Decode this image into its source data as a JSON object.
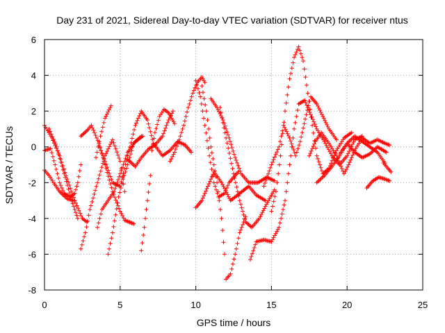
{
  "chart_data": {
    "type": "scatter",
    "title": "Day 231 of 2021, Sidereal Day-to-day VTEC variation (SDTVAR) for receiver ntus",
    "xlabel": "GPS time / hours",
    "ylabel": "SDTVAR / TECUs",
    "xlim": [
      0,
      25
    ],
    "ylim": [
      -8,
      6
    ],
    "xticks": [
      "0",
      "5",
      "10",
      "15",
      "20",
      "25"
    ],
    "yticks": [
      "-8",
      "-6",
      "-4",
      "-2",
      "0",
      "2",
      "4",
      "6"
    ],
    "grid": true,
    "marker": "plus",
    "color": "#ff0000",
    "series": [
      {
        "points": [
          [
            0.0,
            1.2
          ],
          [
            0.5,
            0.5
          ],
          [
            1.0,
            -0.5
          ],
          [
            1.5,
            -1.8
          ],
          [
            2.0,
            -3.0
          ],
          [
            2.5,
            -4.0
          ],
          [
            2.8,
            -4.2
          ]
        ]
      },
      {
        "points": [
          [
            0.0,
            -0.2
          ],
          [
            0.4,
            -0.1
          ],
          [
            0.7,
            -1.0
          ],
          [
            1.0,
            -2.0
          ],
          [
            1.3,
            -2.6
          ],
          [
            1.7,
            -2.8
          ],
          [
            2.0,
            -2.6
          ],
          [
            2.2,
            -2.0
          ],
          [
            2.4,
            -1.0
          ]
        ]
      },
      {
        "points": [
          [
            0.0,
            -1.3
          ],
          [
            0.3,
            -1.6
          ],
          [
            0.6,
            -2.0
          ],
          [
            1.0,
            -2.5
          ],
          [
            1.5,
            -2.9
          ],
          [
            2.0,
            -3.0
          ]
        ]
      },
      {
        "points": [
          [
            0.3,
            1.0
          ],
          [
            0.8,
            0.0
          ],
          [
            1.3,
            -1.5
          ],
          [
            1.8,
            -3.0
          ],
          [
            2.2,
            -4.0
          ]
        ]
      },
      {
        "points": [
          [
            2.4,
            -5.7
          ],
          [
            2.7,
            -4.8
          ],
          [
            3.0,
            -3.5
          ],
          [
            3.5,
            -2.0
          ],
          [
            4.0,
            -0.5
          ],
          [
            4.5,
            0.4
          ],
          [
            5.0,
            -0.8
          ],
          [
            5.3,
            -2.5
          ]
        ]
      },
      {
        "points": [
          [
            2.4,
            0.6
          ],
          [
            2.8,
            0.9
          ],
          [
            3.1,
            1.2
          ],
          [
            3.3,
            0.8
          ],
          [
            3.6,
            0.2
          ],
          [
            4.0,
            -1.0
          ],
          [
            4.5,
            -2.5
          ],
          [
            5.0,
            -3.6
          ],
          [
            5.3,
            -4.1
          ],
          [
            5.9,
            -4.3
          ]
        ]
      },
      {
        "points": [
          [
            3.4,
            -0.6
          ],
          [
            3.7,
            0.6
          ],
          [
            4.0,
            1.6
          ],
          [
            4.4,
            2.3
          ]
        ]
      },
      {
        "points": [
          [
            3.6,
            0.1
          ],
          [
            4.0,
            -0.8
          ],
          [
            4.5,
            -2.0
          ],
          [
            5.0,
            -2.2
          ],
          [
            5.5,
            -0.5
          ],
          [
            6.0,
            1.2
          ],
          [
            6.4,
            2.0
          ],
          [
            6.8,
            1.5
          ],
          [
            7.2,
            0.2
          ],
          [
            7.8,
            -0.5
          ],
          [
            8.3,
            -0.2
          ],
          [
            8.8,
            0.3
          ],
          [
            9.3,
            0.1
          ],
          [
            9.7,
            -0.3
          ]
        ]
      },
      {
        "points": [
          [
            3.5,
            -4.5
          ],
          [
            3.8,
            -3.5
          ],
          [
            4.2,
            -3.0
          ],
          [
            4.6,
            -2.5
          ],
          [
            5.0,
            -1.5
          ],
          [
            5.5,
            -0.3
          ],
          [
            6.0,
            0.3
          ],
          [
            6.5,
            0.6
          ]
        ]
      },
      {
        "points": [
          [
            4.2,
            -6.0
          ],
          [
            4.5,
            -4.8
          ],
          [
            4.7,
            -3.8
          ],
          [
            4.9,
            -2.8
          ],
          [
            5.2,
            -1.8
          ],
          [
            5.5,
            -1.0
          ],
          [
            5.9,
            0.2
          ],
          [
            6.4,
            0.6
          ]
        ]
      },
      {
        "points": [
          [
            5.5,
            -0.7
          ],
          [
            6.0,
            -1.1
          ],
          [
            6.4,
            -0.6
          ],
          [
            6.9,
            -0.1
          ],
          [
            7.3,
            0.1
          ],
          [
            7.8,
            0.6
          ],
          [
            8.2,
            1.5
          ],
          [
            8.5,
            2.0
          ]
        ]
      },
      {
        "points": [
          [
            6.4,
            -5.8
          ],
          [
            6.6,
            -4.5
          ],
          [
            6.8,
            -3.0
          ],
          [
            7.0,
            -1.6
          ],
          [
            7.1,
            -0.2
          ],
          [
            7.3,
            0.8
          ],
          [
            7.6,
            1.7
          ],
          [
            7.9,
            2.1
          ],
          [
            8.2,
            1.9
          ],
          [
            8.6,
            1.3
          ]
        ]
      },
      {
        "points": [
          [
            8.3,
            -0.8
          ],
          [
            8.6,
            -0.3
          ],
          [
            8.9,
            0.4
          ],
          [
            9.2,
            1.2
          ],
          [
            9.5,
            2.2
          ],
          [
            9.8,
            3.0
          ],
          [
            10.1,
            3.6
          ],
          [
            10.4,
            3.9
          ],
          [
            10.6,
            3.6
          ]
        ]
      },
      {
        "points": [
          [
            10.0,
            3.7
          ],
          [
            10.3,
            2.8
          ],
          [
            10.6,
            1.2
          ],
          [
            10.9,
            -0.5
          ],
          [
            11.2,
            -2.0
          ],
          [
            11.5,
            -2.8
          ],
          [
            11.9,
            -2.6
          ],
          [
            12.2,
            -2.0
          ],
          [
            12.8,
            -1.4
          ]
        ]
      },
      {
        "points": [
          [
            10.4,
            3.4
          ],
          [
            10.7,
            2.0
          ],
          [
            11.0,
            0.0
          ],
          [
            11.4,
            -2.0
          ],
          [
            11.7,
            -4.0
          ],
          [
            11.9,
            -6.0
          ],
          [
            12.0,
            -7.4
          ],
          [
            12.3,
            -7.1
          ],
          [
            12.6,
            -6.0
          ],
          [
            12.9,
            -4.8
          ],
          [
            13.3,
            -3.9
          ]
        ]
      },
      {
        "points": [
          [
            10.0,
            -3.4
          ],
          [
            10.4,
            -3.0
          ],
          [
            10.8,
            -2.2
          ],
          [
            11.2,
            -1.4
          ],
          [
            11.7,
            -2.0
          ],
          [
            12.3,
            -3.0
          ],
          [
            12.9,
            -2.6
          ],
          [
            13.5,
            -2.2
          ],
          [
            14.0,
            -2.7
          ],
          [
            14.6,
            -3.0
          ]
        ]
      },
      {
        "points": [
          [
            11.0,
            2.7
          ],
          [
            11.4,
            2.2
          ],
          [
            11.8,
            1.5
          ],
          [
            12.2,
            0.5
          ],
          [
            12.6,
            -0.6
          ],
          [
            13.0,
            -1.5
          ],
          [
            13.5,
            -2.0
          ],
          [
            14.1,
            -2.0
          ],
          [
            14.7,
            -1.7
          ],
          [
            15.2,
            -1.9
          ]
        ]
      },
      {
        "points": [
          [
            11.6,
            2.2
          ],
          [
            12.0,
            0.5
          ],
          [
            12.5,
            -1.5
          ],
          [
            12.9,
            -3.0
          ],
          [
            13.3,
            -4.2
          ],
          [
            13.7,
            -4.5
          ],
          [
            14.2,
            -4.0
          ],
          [
            14.8,
            -3.0
          ],
          [
            15.2,
            -2.4
          ]
        ]
      },
      {
        "points": [
          [
            13.6,
            -6.3
          ],
          [
            14.0,
            -5.3
          ],
          [
            14.5,
            -5.2
          ],
          [
            15.0,
            -5.3
          ],
          [
            15.5,
            -4.5
          ],
          [
            15.9,
            -3.0
          ],
          [
            16.2,
            -1.0
          ],
          [
            16.5,
            1.0
          ],
          [
            16.8,
            2.4
          ],
          [
            17.2,
            2.6
          ],
          [
            17.6,
            1.8
          ],
          [
            18.0,
            1.0
          ],
          [
            18.5,
            0.3
          ],
          [
            19.0,
            -0.5
          ],
          [
            19.5,
            -1.0
          ],
          [
            20.0,
            -0.5
          ],
          [
            20.5,
            0.4
          ],
          [
            21.0,
            0.6
          ]
        ]
      },
      {
        "points": [
          [
            15.0,
            -3.6
          ],
          [
            15.3,
            -2.5
          ],
          [
            15.6,
            -0.5
          ],
          [
            15.9,
            2.0
          ],
          [
            16.2,
            3.8
          ],
          [
            16.5,
            5.0
          ],
          [
            16.8,
            5.6
          ],
          [
            17.1,
            4.8
          ],
          [
            17.4,
            3.0
          ],
          [
            17.7,
            1.2
          ],
          [
            18.0,
            -0.5
          ],
          [
            18.4,
            -1.5
          ],
          [
            18.8,
            -1.2
          ],
          [
            19.3,
            -0.2
          ],
          [
            19.8,
            0.5
          ],
          [
            20.3,
            0.8
          ]
        ]
      },
      {
        "points": [
          [
            14.5,
            -2.2
          ],
          [
            15.0,
            -1.0
          ],
          [
            15.5,
            0.0
          ],
          [
            15.8,
            1.2
          ],
          [
            16.2,
            0.5
          ],
          [
            16.6,
            -0.5
          ],
          [
            16.9,
            0.3
          ],
          [
            17.3,
            1.8
          ],
          [
            17.6,
            2.8
          ],
          [
            18.0,
            2.4
          ],
          [
            18.4,
            1.7
          ],
          [
            18.8,
            1.0
          ],
          [
            19.3,
            0.4
          ]
        ]
      },
      {
        "points": [
          [
            17.5,
            -0.5
          ],
          [
            17.9,
            0.3
          ],
          [
            18.3,
            0.8
          ],
          [
            18.8,
            0.2
          ],
          [
            19.3,
            -0.5
          ],
          [
            19.8,
            -1.5
          ],
          [
            20.1,
            -1.0
          ],
          [
            20.5,
            -0.2
          ],
          [
            21.0,
            0.5
          ],
          [
            21.5,
            0.2
          ],
          [
            22.0,
            0.4
          ],
          [
            22.5,
            0.2
          ],
          [
            22.8,
            0.1
          ]
        ]
      },
      {
        "points": [
          [
            18.0,
            -2.0
          ],
          [
            18.5,
            -1.6
          ],
          [
            19.0,
            -1.1
          ],
          [
            19.5,
            -0.5
          ],
          [
            20.0,
            0.2
          ],
          [
            20.5,
            0.6
          ],
          [
            21.0,
            0.3
          ],
          [
            21.5,
            0.0
          ],
          [
            22.0,
            -0.3
          ],
          [
            22.5,
            -0.9
          ]
        ]
      },
      {
        "points": [
          [
            19.5,
            -0.4
          ],
          [
            20.0,
            0.2
          ],
          [
            20.5,
            -0.3
          ],
          [
            21.0,
            -0.6
          ],
          [
            21.5,
            -0.4
          ],
          [
            22.0,
            0.0
          ],
          [
            22.6,
            -0.3
          ]
        ]
      },
      {
        "points": [
          [
            21.3,
            -2.3
          ],
          [
            21.7,
            -1.9
          ],
          [
            22.1,
            -1.7
          ],
          [
            22.5,
            -1.8
          ],
          [
            22.8,
            -1.9
          ]
        ]
      },
      {
        "points": [
          [
            22.4,
            -0.9
          ],
          [
            22.7,
            -1.2
          ],
          [
            22.9,
            -1.4
          ]
        ]
      }
    ]
  }
}
